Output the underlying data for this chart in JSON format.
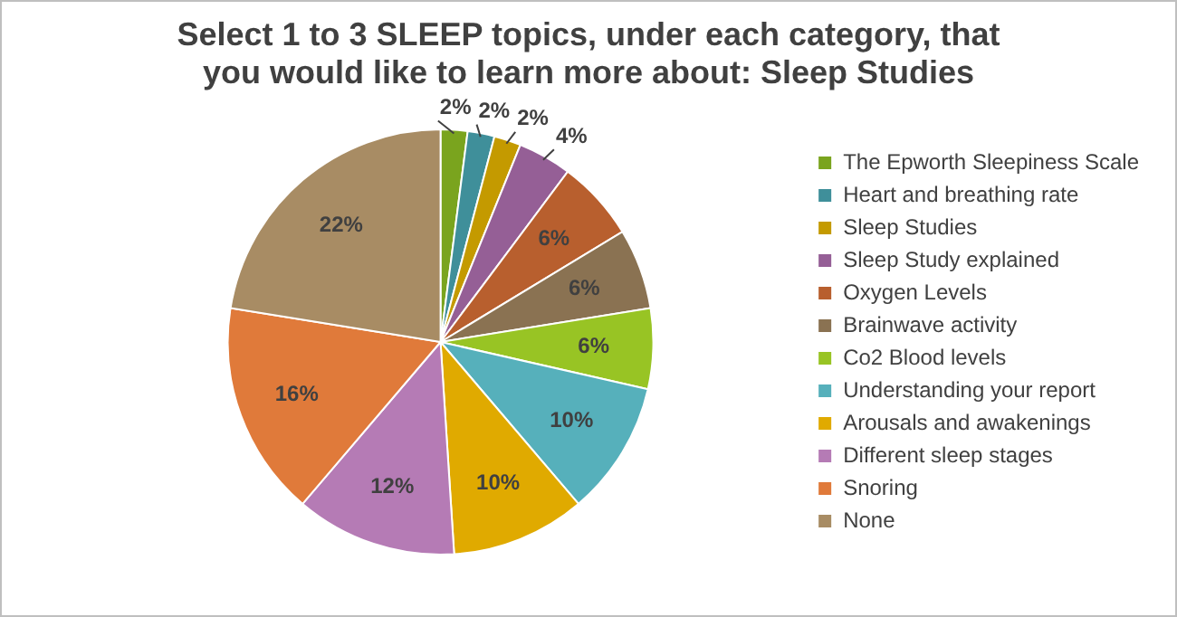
{
  "chart_data": {
    "type": "pie",
    "title": "Select 1 to 3 SLEEP topics, under each category, that you would like to learn more about: Sleep Studies",
    "categories": [
      "The Epworth Sleepiness Scale",
      "Heart and breathing rate",
      "Sleep Studies",
      "Sleep Study explained",
      "Oxygen Levels",
      "Brainwave activity",
      "Co2 Blood levels",
      "Understanding your report",
      "Arousals and awakenings",
      "Different sleep stages",
      "Snoring",
      "None"
    ],
    "values": [
      2,
      2,
      2,
      4,
      6,
      6,
      6,
      10,
      10,
      12,
      16,
      22
    ],
    "value_labels": [
      "2%",
      "2%",
      "2%",
      "4%",
      "6%",
      "6%",
      "6%",
      "10%",
      "10%",
      "12%",
      "16%",
      "22%"
    ],
    "colors": [
      "#7aa41e",
      "#3f8f9a",
      "#c49a00",
      "#955f96",
      "#b85f2e",
      "#8a7252",
      "#98c424",
      "#56b0bb",
      "#e0aa00",
      "#b57bb5",
      "#e07a3a",
      "#a88c64"
    ],
    "legend": "right"
  }
}
